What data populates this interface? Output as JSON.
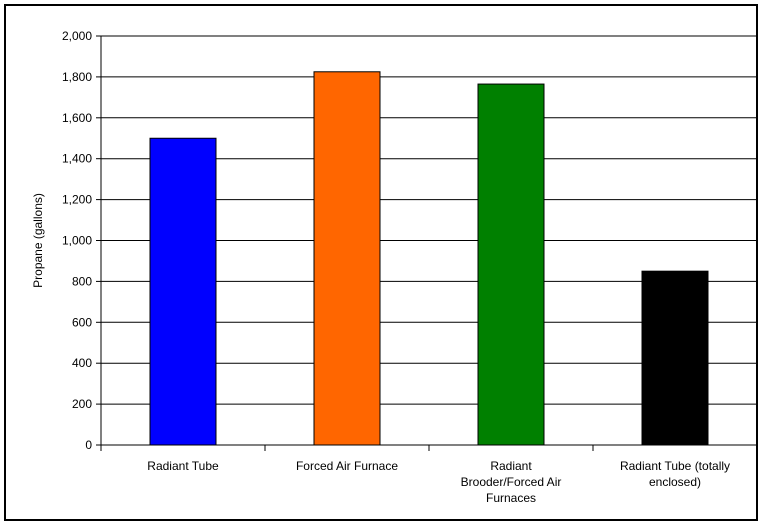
{
  "chart_data": {
    "type": "bar",
    "title": "",
    "xlabel": "",
    "ylabel": "Propane (gallons)",
    "ylim": [
      0,
      2000
    ],
    "yticks": [
      0,
      200,
      400,
      600,
      800,
      1000,
      1200,
      1400,
      1600,
      1800,
      2000
    ],
    "ytick_labels": [
      "0",
      "200",
      "400",
      "600",
      "800",
      "1,000",
      "1,200",
      "1,400",
      "1,600",
      "1,800",
      "2,000"
    ],
    "grid": "horizontal",
    "legend": "none",
    "categories": [
      [
        "Radiant Tube"
      ],
      [
        "Forced Air Furnace"
      ],
      [
        "Radiant",
        "Brooder/Forced Air",
        "Furnaces"
      ],
      [
        "Radiant Tube (totally",
        "enclosed)"
      ]
    ],
    "values": [
      1500,
      1825,
      1765,
      850
    ],
    "colors": [
      "#0000ff",
      "#ff6600",
      "#008000",
      "#000000"
    ]
  }
}
